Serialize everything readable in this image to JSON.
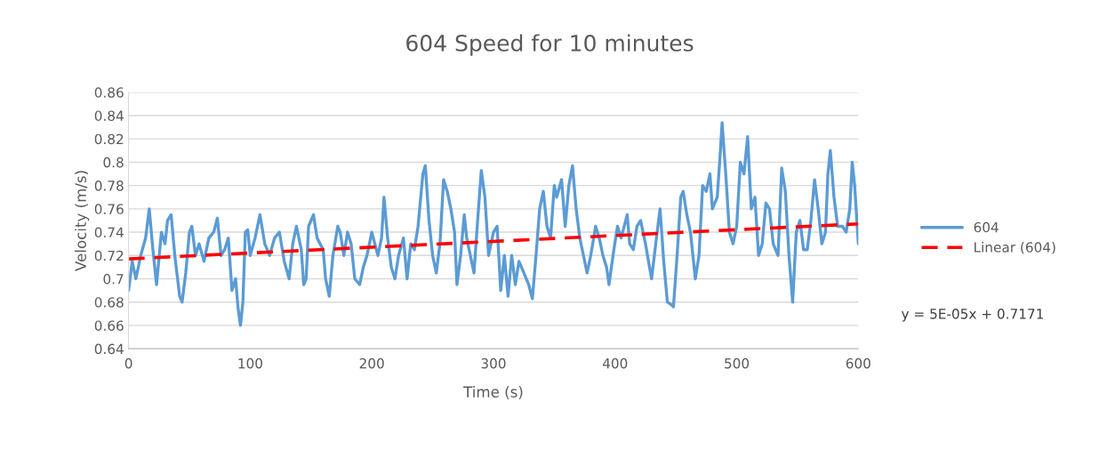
{
  "chart_data": {
    "type": "line",
    "title": "604 Speed for 10 minutes",
    "xlabel": "Time (s)",
    "ylabel": "Velocity (m/s)",
    "xlim": [
      0,
      600
    ],
    "xticks": [
      0,
      100,
      200,
      300,
      400,
      500,
      600
    ],
    "ylim": [
      0.64,
      0.86
    ],
    "yticks": [
      {
        "value": 0.64,
        "label": "0.64"
      },
      {
        "value": 0.66,
        "label": "0.66"
      },
      {
        "value": 0.68,
        "label": "0.68"
      },
      {
        "value": 0.7,
        "label": "0.7"
      },
      {
        "value": 0.72,
        "label": "0.72"
      },
      {
        "value": 0.74,
        "label": "0.74"
      },
      {
        "value": 0.76,
        "label": "0.76"
      },
      {
        "value": 0.78,
        "label": "0.78"
      },
      {
        "value": 0.8,
        "label": "0.8"
      },
      {
        "value": 0.82,
        "label": "0.82"
      },
      {
        "value": 0.84,
        "label": "0.84"
      },
      {
        "value": 0.86,
        "label": "0.86"
      }
    ],
    "grid": "y",
    "legend": "right",
    "marker": "none",
    "annotations": [
      "y = 5E-05x + 0.7171"
    ],
    "series": [
      {
        "name": "604",
        "color": "#5b9bd5",
        "line_style": "solid",
        "x": [
          0,
          3,
          6,
          10,
          14,
          17,
          20,
          23,
          27,
          30,
          32,
          35,
          38,
          42,
          44,
          47,
          50,
          52,
          55,
          58,
          62,
          66,
          70,
          73,
          76,
          79,
          82,
          85,
          88,
          90,
          92,
          94,
          96,
          98,
          100,
          104,
          108,
          112,
          116,
          120,
          124,
          128,
          132,
          135,
          138,
          142,
          144,
          146,
          148,
          152,
          155,
          160,
          162,
          165,
          168,
          172,
          174,
          177,
          180,
          183,
          186,
          190,
          193,
          196,
          200,
          205,
          208,
          210,
          213,
          216,
          219,
          222,
          226,
          229,
          232,
          235,
          238,
          242,
          244,
          247,
          250,
          253,
          256,
          259,
          262,
          265,
          268,
          270,
          273,
          276,
          278,
          281,
          284,
          287,
          290,
          293,
          296,
          300,
          303,
          306,
          309,
          312,
          315,
          318,
          321,
          325,
          329,
          332,
          335,
          338,
          341,
          344,
          347,
          350,
          352,
          356,
          359,
          362,
          365,
          368,
          371,
          374,
          377,
          380,
          384,
          387,
          390,
          393,
          395,
          399,
          402,
          405,
          410,
          412,
          415,
          418,
          421,
          425,
          430,
          434,
          437,
          440,
          443,
          446,
          448,
          451,
          454,
          456,
          459,
          462,
          466,
          469,
          472,
          475,
          478,
          480,
          484,
          486,
          488,
          491,
          494,
          497,
          500,
          503,
          506,
          509,
          512,
          515,
          518,
          521,
          524,
          527,
          530,
          534,
          537,
          540,
          543,
          546,
          549,
          552,
          555,
          558,
          561,
          564,
          567,
          570,
          573,
          575,
          577,
          580,
          583,
          587,
          590,
          593,
          595,
          597,
          600
        ],
        "values": [
          0.69,
          0.715,
          0.7,
          0.72,
          0.735,
          0.76,
          0.725,
          0.695,
          0.74,
          0.73,
          0.75,
          0.755,
          0.72,
          0.685,
          0.68,
          0.705,
          0.74,
          0.745,
          0.72,
          0.73,
          0.715,
          0.735,
          0.74,
          0.752,
          0.72,
          0.725,
          0.735,
          0.69,
          0.7,
          0.675,
          0.66,
          0.68,
          0.74,
          0.742,
          0.72,
          0.735,
          0.755,
          0.73,
          0.72,
          0.735,
          0.74,
          0.715,
          0.7,
          0.73,
          0.745,
          0.725,
          0.695,
          0.7,
          0.745,
          0.755,
          0.735,
          0.725,
          0.7,
          0.685,
          0.72,
          0.745,
          0.74,
          0.72,
          0.74,
          0.73,
          0.7,
          0.695,
          0.71,
          0.72,
          0.74,
          0.72,
          0.735,
          0.77,
          0.735,
          0.71,
          0.7,
          0.72,
          0.735,
          0.7,
          0.73,
          0.725,
          0.745,
          0.79,
          0.797,
          0.75,
          0.72,
          0.705,
          0.73,
          0.785,
          0.775,
          0.76,
          0.74,
          0.695,
          0.72,
          0.755,
          0.735,
          0.72,
          0.705,
          0.75,
          0.793,
          0.77,
          0.72,
          0.74,
          0.745,
          0.69,
          0.72,
          0.685,
          0.72,
          0.695,
          0.715,
          0.705,
          0.695,
          0.683,
          0.72,
          0.76,
          0.775,
          0.745,
          0.735,
          0.78,
          0.77,
          0.785,
          0.745,
          0.78,
          0.797,
          0.76,
          0.735,
          0.72,
          0.705,
          0.72,
          0.745,
          0.735,
          0.72,
          0.71,
          0.695,
          0.725,
          0.745,
          0.735,
          0.755,
          0.73,
          0.725,
          0.745,
          0.75,
          0.73,
          0.7,
          0.735,
          0.76,
          0.715,
          0.68,
          0.678,
          0.676,
          0.72,
          0.77,
          0.775,
          0.755,
          0.74,
          0.7,
          0.72,
          0.78,
          0.775,
          0.79,
          0.76,
          0.77,
          0.8,
          0.834,
          0.79,
          0.74,
          0.73,
          0.745,
          0.8,
          0.79,
          0.822,
          0.76,
          0.77,
          0.72,
          0.73,
          0.765,
          0.76,
          0.73,
          0.72,
          0.795,
          0.775,
          0.72,
          0.68,
          0.74,
          0.75,
          0.725,
          0.725,
          0.75,
          0.785,
          0.76,
          0.73,
          0.74,
          0.79,
          0.81,
          0.77,
          0.745,
          0.745,
          0.74,
          0.76,
          0.8,
          0.78,
          0.73
        ]
      },
      {
        "name": "Linear (604)",
        "color": "#ff0000",
        "line_style": "dashed",
        "x": [
          0,
          600
        ],
        "values": [
          0.7171,
          0.7471
        ]
      }
    ]
  }
}
